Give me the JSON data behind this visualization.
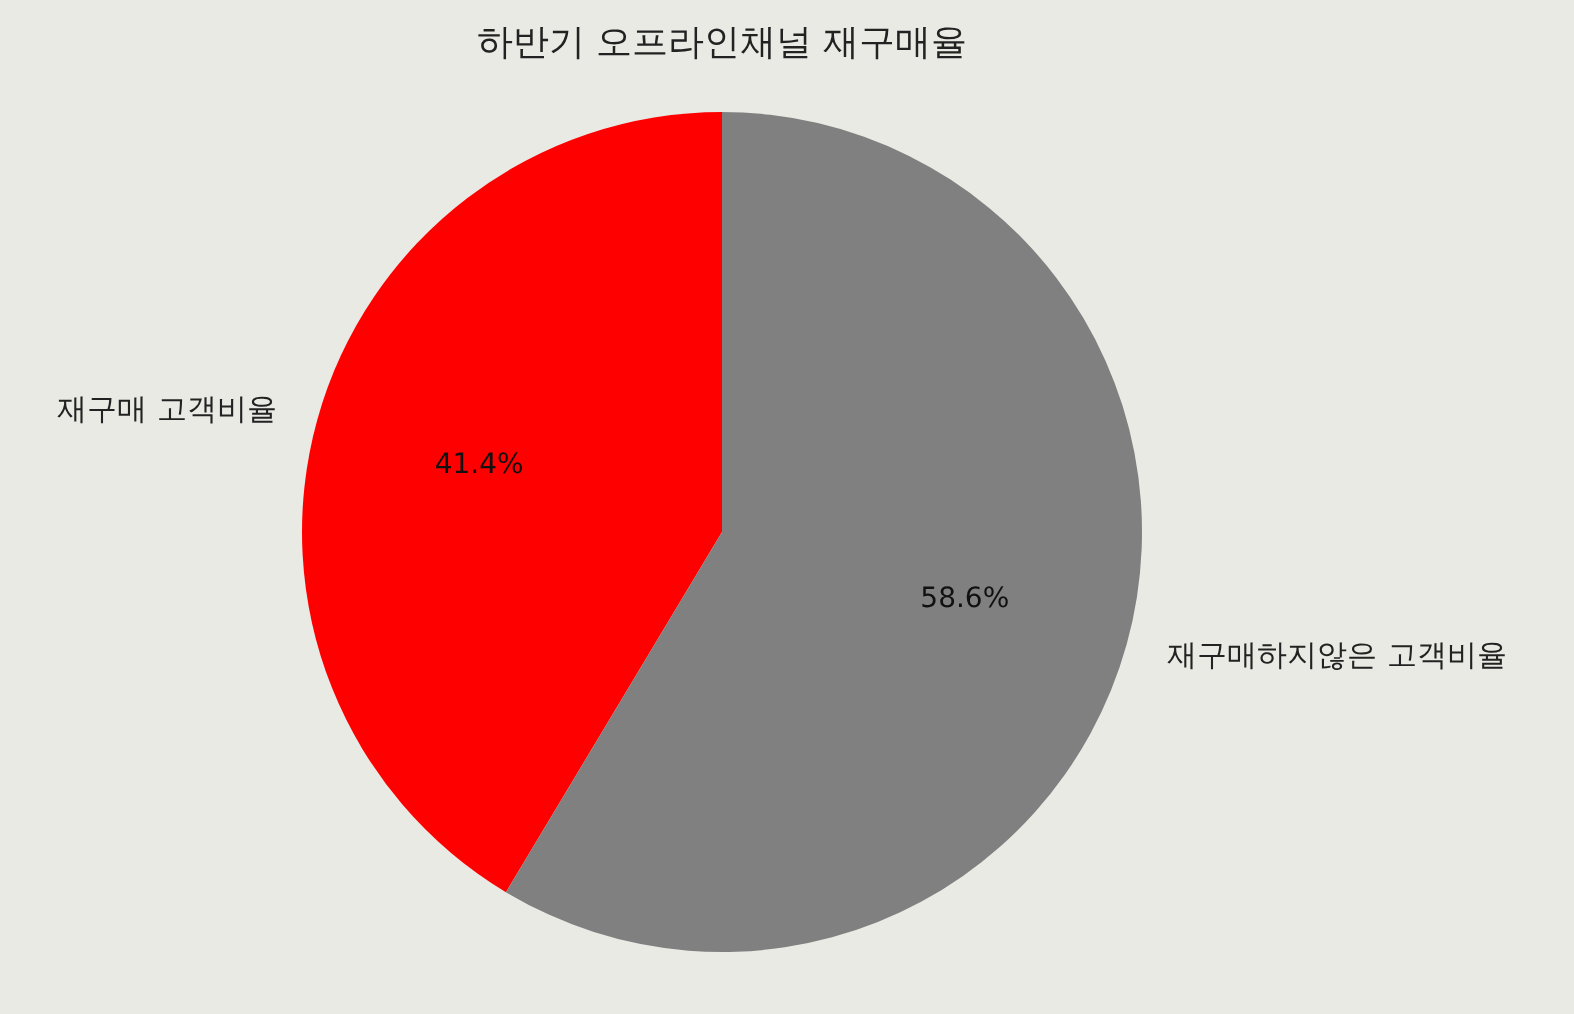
{
  "chart_data": {
    "type": "pie",
    "title": "하반기 오프라인채널 재구매율",
    "categories": [
      "재구매 고객비율",
      "재구매하지않은 고객비율"
    ],
    "values": [
      41.4,
      58.6
    ],
    "colors": [
      "#ff0000",
      "#808080"
    ],
    "value_labels": [
      "41.4%",
      "58.6%"
    ],
    "legend": false
  }
}
